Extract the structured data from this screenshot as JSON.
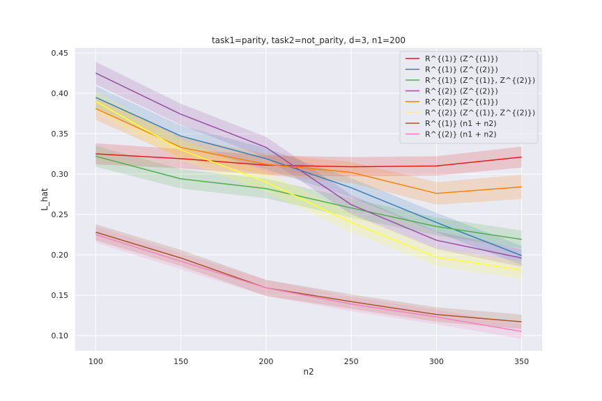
{
  "chart_data": {
    "type": "line",
    "title": "task1=parity, task2=not_parity, d=3, n1=200",
    "xlabel": "n2",
    "ylabel": "L_hat",
    "x": [
      100,
      150,
      200,
      250,
      300,
      350
    ],
    "xticks": [
      100,
      150,
      200,
      250,
      300,
      350
    ],
    "yticks": [
      0.1,
      0.15,
      0.2,
      0.25,
      0.3,
      0.35,
      0.4,
      0.45
    ],
    "xlim": [
      88,
      362
    ],
    "ylim": [
      0.081,
      0.456
    ],
    "grid": true,
    "legend_position": "top-right",
    "background": "#eaeaf2",
    "series": [
      {
        "name": "R^{(1)} (Z^{(1)})",
        "color": "#e41a1c",
        "values": [
          0.325,
          0.319,
          0.311,
          0.309,
          0.31,
          0.321
        ],
        "band": [
          0.013,
          0.012,
          0.012,
          0.012,
          0.012,
          0.013
        ]
      },
      {
        "name": "R^{(1)} (Z^{(2)})",
        "color": "#377eb8",
        "values": [
          0.395,
          0.347,
          0.319,
          0.283,
          0.24,
          0.199
        ],
        "band": [
          0.014,
          0.013,
          0.013,
          0.012,
          0.012,
          0.012
        ]
      },
      {
        "name": "R^{(1)} (Z^{(1)}, Z^{(2)})",
        "color": "#4daf4a",
        "values": [
          0.322,
          0.294,
          0.282,
          0.258,
          0.235,
          0.219
        ],
        "band": [
          0.013,
          0.012,
          0.012,
          0.012,
          0.011,
          0.011
        ]
      },
      {
        "name": "R^{(2)} (Z^{(2)})",
        "color": "#984ea3",
        "values": [
          0.425,
          0.374,
          0.333,
          0.262,
          0.218,
          0.196
        ],
        "band": [
          0.014,
          0.013,
          0.013,
          0.012,
          0.011,
          0.011
        ]
      },
      {
        "name": "R^{(2)} (Z^{(1)})",
        "color": "#ff7f00",
        "values": [
          0.381,
          0.333,
          0.312,
          0.302,
          0.276,
          0.284
        ],
        "band": [
          0.014,
          0.013,
          0.013,
          0.013,
          0.014,
          0.015
        ]
      },
      {
        "name": "R^{(2)} (Z^{(1)}, Z^{(2)})",
        "color": "#ffff33",
        "values": [
          0.39,
          0.33,
          0.29,
          0.24,
          0.197,
          0.181
        ],
        "band": [
          0.013,
          0.013,
          0.012,
          0.012,
          0.011,
          0.011
        ]
      },
      {
        "name": "R^{(1)} (n1 + n2)",
        "color": "#a65628",
        "values": [
          0.228,
          0.196,
          0.159,
          0.142,
          0.126,
          0.117
        ],
        "band": [
          0.01,
          0.01,
          0.01,
          0.009,
          0.009,
          0.009
        ]
      },
      {
        "name": "R^{(2)} (n1 + n2)",
        "color": "#f781bf",
        "values": [
          0.225,
          0.192,
          0.159,
          0.139,
          0.123,
          0.105
        ],
        "band": [
          0.01,
          0.01,
          0.01,
          0.009,
          0.009,
          0.009
        ]
      }
    ]
  }
}
